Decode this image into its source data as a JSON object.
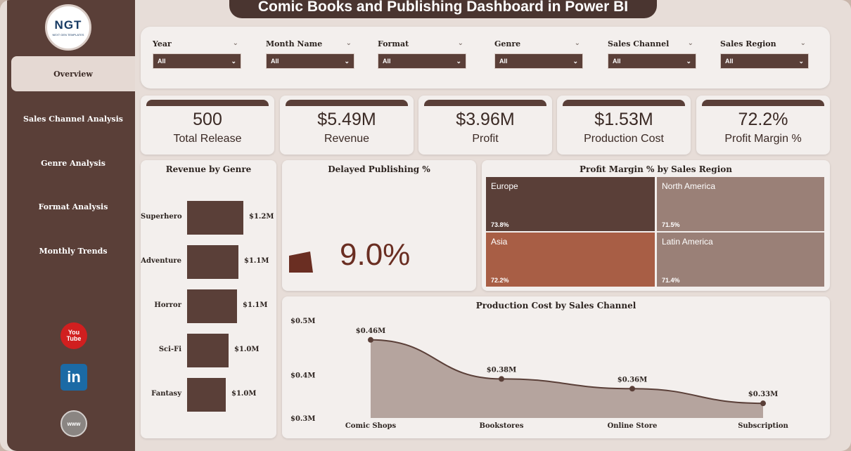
{
  "title": "Comic Books and Publishing Dashboard in Power BI",
  "logo": {
    "text": "NGT",
    "sub": "NEXT GEN TEMPLATES"
  },
  "nav": [
    {
      "label": "Overview",
      "active": true
    },
    {
      "label": "Sales Channel Analysis"
    },
    {
      "label": "Genre Analysis"
    },
    {
      "label": "Format Analysis"
    },
    {
      "label": "Monthly Trends"
    }
  ],
  "social": {
    "youtube": "You Tube",
    "linkedin": "in",
    "web": "www"
  },
  "filters": [
    {
      "label": "Year",
      "value": "All"
    },
    {
      "label": "Month Name",
      "value": "All"
    },
    {
      "label": "Format",
      "value": "All"
    },
    {
      "label": "Genre",
      "value": "All"
    },
    {
      "label": "Sales Channel",
      "value": "All"
    },
    {
      "label": "Sales Region",
      "value": "All"
    }
  ],
  "kpis": [
    {
      "value": "500",
      "label": "Total Release"
    },
    {
      "value": "$5.49M",
      "label": "Revenue"
    },
    {
      "value": "$3.96M",
      "label": "Profit"
    },
    {
      "value": "$1.53M",
      "label": "Production Cost"
    },
    {
      "value": "72.2%",
      "label": "Profit Margin %"
    }
  ],
  "revenue_by_genre": {
    "title": "Revenue by Genre",
    "items": [
      {
        "label": "Superhero",
        "value": 1.2,
        "value_label": "$1.2M"
      },
      {
        "label": "Adventure",
        "value": 1.1,
        "value_label": "$1.1M"
      },
      {
        "label": "Horror",
        "value": 1.1,
        "value_label": "$1.1M"
      },
      {
        "label": "Sci-Fi",
        "value": 1.0,
        "value_label": "$1.0M"
      },
      {
        "label": "Fantasy",
        "value": 1.0,
        "value_label": "$1.0M"
      }
    ]
  },
  "delayed": {
    "title": "Delayed Publishing %",
    "value": "9.0%",
    "fraction": 0.09
  },
  "treemap": {
    "title": "Profit Margin % by Sales Region",
    "tiles": [
      {
        "name": "Europe",
        "value": "73.8%",
        "color": "#5a3f38"
      },
      {
        "name": "North America",
        "value": "71.5%",
        "color": "#9a8077"
      },
      {
        "name": "Asia",
        "value": "72.2%",
        "color": "#a85e45"
      },
      {
        "name": "Latin America",
        "value": "71.4%",
        "color": "#9a8077"
      }
    ]
  },
  "production_cost": {
    "title": "Production Cost by Sales Channel",
    "yticks": [
      "$0.5M",
      "$0.4M",
      "$0.3M"
    ]
  },
  "chart_data": {
    "type": "area",
    "title": "Production Cost by Sales Channel",
    "categories": [
      "Comic Shops",
      "Bookstores",
      "Online Store",
      "Subscription"
    ],
    "values": [
      0.46,
      0.38,
      0.36,
      0.33
    ],
    "value_labels": [
      "$0.46M",
      "$0.38M",
      "$0.36M",
      "$0.33M"
    ],
    "ylim": [
      0.3,
      0.5
    ],
    "grid": false
  },
  "colors": {
    "brand": "#5a3f38",
    "accent": "#6a2e22",
    "area_fill": "#b5a49e"
  }
}
